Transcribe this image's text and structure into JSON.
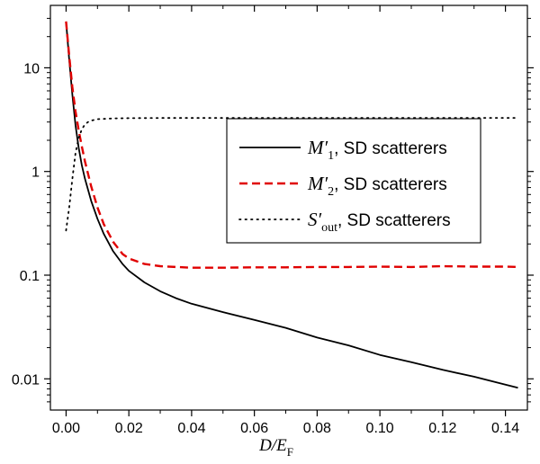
{
  "chart_data": {
    "type": "line",
    "xlabel": "D/E",
    "xlabel_parts": {
      "main": "D/E",
      "sub": "F"
    },
    "ylabel": "",
    "x_axis": {
      "range": [
        -0.005,
        0.147
      ],
      "ticks": [
        0.0,
        0.02,
        0.04,
        0.06,
        0.08,
        0.1,
        0.12,
        0.14
      ],
      "tick_labels": [
        "0.00",
        "0.02",
        "0.04",
        "0.06",
        "0.08",
        "0.10",
        "0.12",
        "0.14"
      ]
    },
    "y_axis": {
      "scale": "log",
      "range": [
        0.005,
        40
      ],
      "ticks": [
        0.01,
        0.1,
        1,
        10
      ],
      "tick_labels": [
        "0.01",
        "0.1",
        "1",
        "10"
      ]
    },
    "legend_position": "center-right",
    "series": [
      {
        "name": "M'1, SD scatterers",
        "legend": {
          "symbol": "M′",
          "sub": "1",
          "text": ",  SD scatterers"
        },
        "color": "#000000",
        "style": "solid",
        "x": [
          0.0,
          0.001,
          0.002,
          0.003,
          0.004,
          0.005,
          0.006,
          0.008,
          0.01,
          0.012,
          0.015,
          0.018,
          0.02,
          0.025,
          0.03,
          0.035,
          0.04,
          0.05,
          0.06,
          0.07,
          0.08,
          0.09,
          0.1,
          0.11,
          0.12,
          0.13,
          0.14,
          0.144
        ],
        "y": [
          28,
          12,
          5.5,
          2.8,
          1.7,
          1.15,
          0.85,
          0.52,
          0.35,
          0.25,
          0.17,
          0.128,
          0.11,
          0.085,
          0.07,
          0.06,
          0.053,
          0.044,
          0.037,
          0.031,
          0.025,
          0.021,
          0.017,
          0.0145,
          0.0122,
          0.0105,
          0.0088,
          0.0082
        ]
      },
      {
        "name": "M'2, SD scatterers",
        "legend": {
          "symbol": "M′",
          "sub": "2",
          "text": ",  SD scatterers"
        },
        "color": "#e00000",
        "style": "dashed",
        "x": [
          0.0,
          0.001,
          0.002,
          0.003,
          0.004,
          0.005,
          0.006,
          0.008,
          0.01,
          0.012,
          0.015,
          0.018,
          0.02,
          0.025,
          0.03,
          0.035,
          0.04,
          0.05,
          0.06,
          0.07,
          0.08,
          0.09,
          0.1,
          0.11,
          0.12,
          0.13,
          0.14,
          0.144
        ],
        "y": [
          28,
          13,
          6.5,
          3.8,
          2.5,
          1.75,
          1.25,
          0.72,
          0.45,
          0.31,
          0.21,
          0.16,
          0.145,
          0.128,
          0.122,
          0.12,
          0.118,
          0.118,
          0.119,
          0.119,
          0.12,
          0.12,
          0.121,
          0.12,
          0.122,
          0.121,
          0.121,
          0.12
        ]
      },
      {
        "name": "S'out, SD scatterers",
        "legend": {
          "symbol": "S′",
          "sub": "out",
          "text": ", SD scatterers"
        },
        "color": "#000000",
        "style": "dotted",
        "x": [
          0.0,
          0.001,
          0.002,
          0.003,
          0.004,
          0.005,
          0.006,
          0.007,
          0.008,
          0.01,
          0.012,
          0.015,
          0.02,
          0.03,
          0.05,
          0.08,
          0.1,
          0.12,
          0.144
        ],
        "y": [
          0.27,
          0.45,
          0.85,
          1.5,
          2.1,
          2.55,
          2.85,
          3.0,
          3.1,
          3.2,
          3.22,
          3.25,
          3.27,
          3.28,
          3.28,
          3.29,
          3.29,
          3.29,
          3.29
        ]
      }
    ]
  }
}
